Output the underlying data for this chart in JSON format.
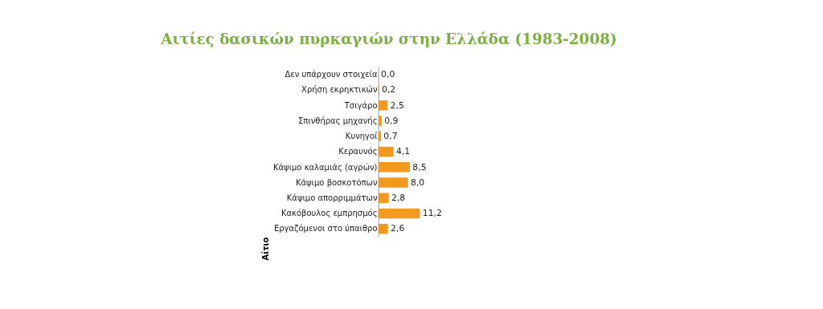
{
  "chart_data": {
    "type": "bar",
    "orientation": "horizontal",
    "title": "Αιτίες  δασικών πυρκαγιών στην Ελλάδα (1983-2008)",
    "ylabel": "Αίτιο",
    "categories": [
      "Δεν υπάρχουν στοιχεία",
      "Χρήση εκρηκτικών",
      "Τσιγάρο",
      "Σπινθήρας μηχανής",
      "Κυνηγοί",
      "Κεραυνός",
      "Κάψιμο καλαμιάς (αγρών)",
      "Κάψιμο βοσκοτόπων",
      "Κάψιμο απορριμμάτων",
      "Κακόβουλος εμπρησμός",
      "Εργαζόμενοι στο ύπαιθρο"
    ],
    "values": [
      0.0,
      0.2,
      2.5,
      0.9,
      0.7,
      4.1,
      8.5,
      8.0,
      2.8,
      11.2,
      2.6
    ],
    "value_labels": [
      "0,0",
      "0,2",
      "2,5",
      "0,9",
      "0,7",
      "4,1",
      "8,5",
      "8,0",
      "2,8",
      "11,2",
      "2,6"
    ],
    "color": "#f39a1e",
    "tick_labels": "y",
    "grid": false
  }
}
